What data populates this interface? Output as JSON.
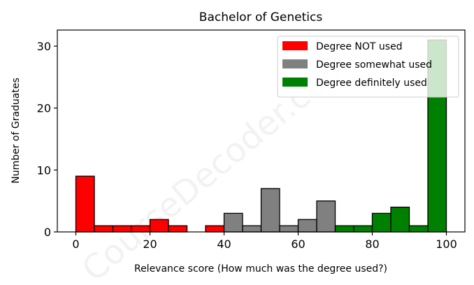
{
  "chart_data": {
    "type": "bar",
    "title": "Bachelor of Genetics",
    "xlabel": "Relevance score (How much was the degree used?)",
    "ylabel": "Number of Graduates",
    "xlim": [
      -5,
      105
    ],
    "ylim": [
      0,
      32.6
    ],
    "xticks": [
      0,
      20,
      40,
      60,
      80,
      100
    ],
    "yticks": [
      0,
      10,
      20,
      30
    ],
    "grid": false,
    "legend_position": "top-right",
    "bin_width": 5,
    "series": [
      {
        "name": "Degree NOT used",
        "color": "#ff0000",
        "bins": [
          {
            "start": 0,
            "value": 9
          },
          {
            "start": 5,
            "value": 1
          },
          {
            "start": 10,
            "value": 1
          },
          {
            "start": 15,
            "value": 1
          },
          {
            "start": 20,
            "value": 2
          },
          {
            "start": 25,
            "value": 1
          },
          {
            "start": 35,
            "value": 1
          }
        ]
      },
      {
        "name": "Degree somewhat used",
        "color": "#808080",
        "bins": [
          {
            "start": 40,
            "value": 3
          },
          {
            "start": 45,
            "value": 1
          },
          {
            "start": 50,
            "value": 7
          },
          {
            "start": 55,
            "value": 1
          },
          {
            "start": 60,
            "value": 2
          },
          {
            "start": 65,
            "value": 5
          }
        ]
      },
      {
        "name": "Degree definitely used",
        "color": "#008000",
        "bins": [
          {
            "start": 70,
            "value": 1
          },
          {
            "start": 75,
            "value": 1
          },
          {
            "start": 80,
            "value": 3
          },
          {
            "start": 85,
            "value": 4
          },
          {
            "start": 90,
            "value": 1
          },
          {
            "start": 95,
            "value": 31
          }
        ]
      }
    ],
    "watermark": "CourseDecoder.com"
  }
}
